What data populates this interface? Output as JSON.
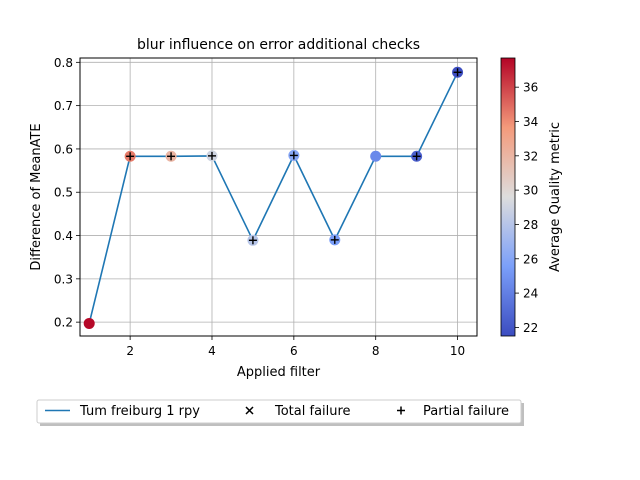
{
  "chart_data": {
    "type": "line",
    "title": "blur influence on error additional checks",
    "xlabel": "Applied filter",
    "ylabel": "Difference of MeanATE",
    "xlim": [
      0.775,
      10.475
    ],
    "ylim": [
      0.168,
      0.81
    ],
    "x_ticks": [
      2,
      4,
      6,
      8,
      10
    ],
    "y_ticks": [
      0.2,
      0.3,
      0.4,
      0.5,
      0.6,
      0.7,
      0.8
    ],
    "grid": true,
    "legend_position": "below plot",
    "series": [
      {
        "name": "Tum freiburg 1 rpy",
        "color": "#1f77b4",
        "x": [
          1,
          2,
          3,
          4,
          5,
          6,
          7,
          8,
          9,
          10
        ],
        "y": [
          0.197,
          0.583,
          0.583,
          0.584,
          0.389,
          0.585,
          0.39,
          0.583,
          0.583,
          0.777
        ]
      }
    ],
    "quality_points": [
      {
        "x": 1,
        "y": 0.197,
        "quality": 37.6
      },
      {
        "x": 2,
        "y": 0.583,
        "quality": 34.5
      },
      {
        "x": 3,
        "y": 0.583,
        "quality": 32.0
      },
      {
        "x": 4,
        "y": 0.584,
        "quality": 29.0
      },
      {
        "x": 5,
        "y": 0.389,
        "quality": 28.0
      },
      {
        "x": 6,
        "y": 0.585,
        "quality": 26.0
      },
      {
        "x": 7,
        "y": 0.39,
        "quality": 25.5
      },
      {
        "x": 8,
        "y": 0.583,
        "quality": 24.5
      },
      {
        "x": 9,
        "y": 0.583,
        "quality": 22.5
      },
      {
        "x": 10,
        "y": 0.777,
        "quality": 21.6
      }
    ],
    "partial_failures": [
      {
        "x": 2,
        "y": 0.583
      },
      {
        "x": 3,
        "y": 0.583
      },
      {
        "x": 4,
        "y": 0.584
      },
      {
        "x": 5,
        "y": 0.389
      },
      {
        "x": 6,
        "y": 0.585
      },
      {
        "x": 7,
        "y": 0.39
      },
      {
        "x": 9,
        "y": 0.583
      },
      {
        "x": 10,
        "y": 0.777
      }
    ],
    "colorbar": {
      "label": "Average Quality metric",
      "colormap": "coolwarm",
      "range": [
        21.5,
        37.7
      ],
      "ticks": [
        22,
        24,
        26,
        28,
        30,
        32,
        34,
        36
      ]
    },
    "legend": [
      {
        "label": "Tum freiburg 1 rpy",
        "marker": "line"
      },
      {
        "label": "Total failure",
        "marker": "x"
      },
      {
        "label": "Partial failure",
        "marker": "+"
      }
    ]
  }
}
